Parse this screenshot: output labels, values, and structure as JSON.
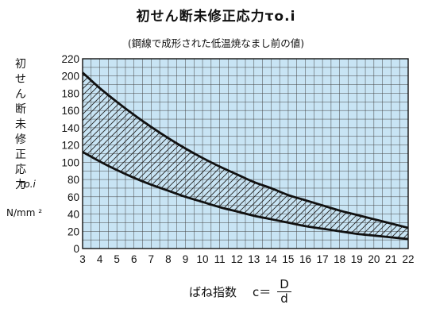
{
  "chart_data": {
    "type": "area",
    "title": "初せん断未修正応力τo.i",
    "subtitle": "(鋼線で成形された低温焼なまし前の値)",
    "ylabel": [
      "初",
      "せ",
      "ん",
      "断",
      "未",
      "修",
      "正",
      "応",
      "力"
    ],
    "ylabel_symbol": "τo.i",
    "yunit": "N/mm ²",
    "xlabel": "ばね指数",
    "xlabel_formula_var": "c＝",
    "xlabel_formula_num": "D",
    "xlabel_formula_den": "d",
    "xlim": [
      3,
      22
    ],
    "ylim": [
      0,
      220
    ],
    "xticks": [
      3,
      4,
      5,
      6,
      7,
      8,
      9,
      10,
      11,
      12,
      13,
      14,
      15,
      16,
      17,
      18,
      19,
      20,
      21,
      22
    ],
    "yticks": [
      0,
      20,
      40,
      60,
      80,
      100,
      120,
      140,
      160,
      180,
      200,
      220
    ],
    "x_minor_step": 0.5,
    "y_minor_step": 10,
    "grid": true,
    "background_color": "#c8e4f4",
    "band_fill": "hatched",
    "series": [
      {
        "x": [
          3,
          4,
          5,
          6,
          7,
          8,
          9,
          10,
          11,
          12,
          13,
          14,
          15,
          16,
          17,
          18,
          19,
          20,
          21,
          22
        ],
        "values": [
          204,
          186,
          170,
          155,
          141,
          128,
          116,
          105,
          95,
          86,
          77,
          70,
          62,
          56,
          50,
          44,
          39,
          34,
          29,
          24
        ]
      },
      {
        "x": [
          3,
          4,
          5,
          6,
          7,
          8,
          9,
          10,
          11,
          12,
          13,
          14,
          15,
          16,
          17,
          18,
          19,
          20,
          21,
          22
        ],
        "values": [
          112,
          101,
          91,
          82,
          74,
          67,
          60,
          54,
          48,
          43,
          38,
          34,
          30,
          26,
          23,
          20,
          17,
          15,
          13,
          11
        ]
      }
    ]
  }
}
